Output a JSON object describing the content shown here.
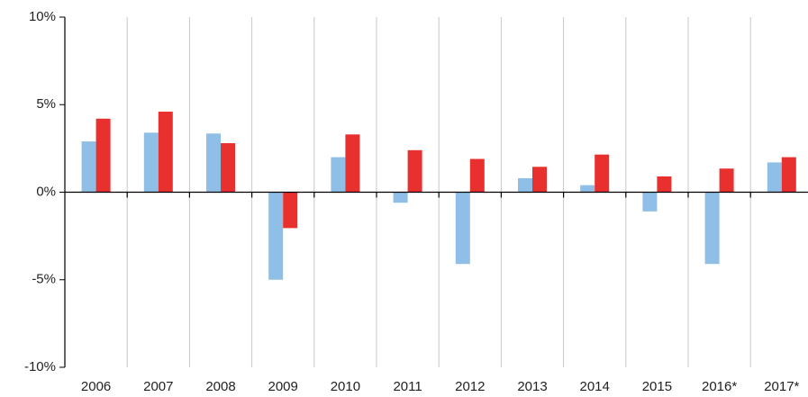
{
  "chart_data": {
    "type": "bar",
    "categories": [
      "2006",
      "2007",
      "2008",
      "2009",
      "2010",
      "2011",
      "2012",
      "2013",
      "2014",
      "2015",
      "2016*",
      "2017*"
    ],
    "series": [
      {
        "color": "#8fbfe6",
        "values": [
          2.9,
          3.4,
          3.35,
          -5.0,
          2.0,
          -0.6,
          -4.1,
          0.8,
          0.4,
          -1.1,
          -4.1,
          1.7
        ]
      },
      {
        "color": "#e8312f",
        "values": [
          4.2,
          4.6,
          2.8,
          -2.05,
          3.3,
          2.4,
          1.9,
          1.45,
          2.15,
          0.9,
          1.35,
          2.0
        ]
      }
    ],
    "ylim": [
      -10,
      10
    ],
    "yticks": [
      {
        "value": -10,
        "label": "-10%"
      },
      {
        "value": -5,
        "label": "-5%"
      },
      {
        "value": 0,
        "label": "0%"
      },
      {
        "value": 5,
        "label": "5%"
      },
      {
        "value": 10,
        "label": "10%"
      }
    ],
    "grid": true
  }
}
